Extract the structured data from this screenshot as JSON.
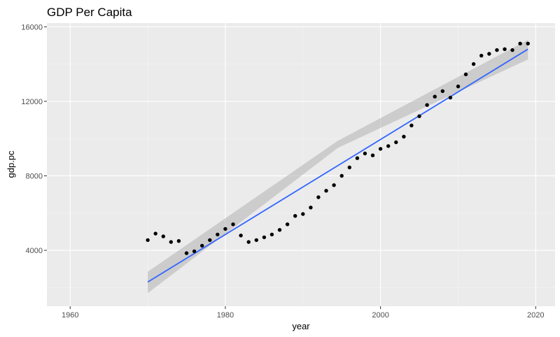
{
  "chart_data": {
    "type": "scatter",
    "title": "GDP Per Capita",
    "xlabel": "year",
    "ylabel": "gdp.pc",
    "xlim": [
      1957,
      2022.5
    ],
    "ylim": [
      1000,
      16200
    ],
    "x_ticks": [
      1960,
      1980,
      2000,
      2020
    ],
    "y_ticks": [
      4000,
      8000,
      12000,
      16000
    ],
    "grid": true,
    "legend": "none",
    "background_color": "#ebebeb",
    "point_color": "#000000",
    "fit_color": "#3366ff",
    "band_color": "#b3b3b3",
    "points": [
      {
        "x": 1970,
        "y": 4550
      },
      {
        "x": 1971,
        "y": 4900
      },
      {
        "x": 1972,
        "y": 4750
      },
      {
        "x": 1973,
        "y": 4450
      },
      {
        "x": 1974,
        "y": 4500
      },
      {
        "x": 1975,
        "y": 3850
      },
      {
        "x": 1976,
        "y": 3950
      },
      {
        "x": 1977,
        "y": 4250
      },
      {
        "x": 1978,
        "y": 4550
      },
      {
        "x": 1979,
        "y": 4850
      },
      {
        "x": 1980,
        "y": 5150
      },
      {
        "x": 1981,
        "y": 5400
      },
      {
        "x": 1982,
        "y": 4800
      },
      {
        "x": 1983,
        "y": 4450
      },
      {
        "x": 1984,
        "y": 4550
      },
      {
        "x": 1985,
        "y": 4700
      },
      {
        "x": 1986,
        "y": 4850
      },
      {
        "x": 1987,
        "y": 5100
      },
      {
        "x": 1988,
        "y": 5400
      },
      {
        "x": 1989,
        "y": 5850
      },
      {
        "x": 1990,
        "y": 5950
      },
      {
        "x": 1991,
        "y": 6300
      },
      {
        "x": 1992,
        "y": 6850
      },
      {
        "x": 1993,
        "y": 7200
      },
      {
        "x": 1994,
        "y": 7500
      },
      {
        "x": 1995,
        "y": 8000
      },
      {
        "x": 1996,
        "y": 8450
      },
      {
        "x": 1997,
        "y": 8950
      },
      {
        "x": 1998,
        "y": 9200
      },
      {
        "x": 1999,
        "y": 9100
      },
      {
        "x": 2000,
        "y": 9450
      },
      {
        "x": 2001,
        "y": 9600
      },
      {
        "x": 2002,
        "y": 9800
      },
      {
        "x": 2003,
        "y": 10100
      },
      {
        "x": 2004,
        "y": 10700
      },
      {
        "x": 2005,
        "y": 11200
      },
      {
        "x": 2006,
        "y": 11800
      },
      {
        "x": 2007,
        "y": 12250
      },
      {
        "x": 2008,
        "y": 12550
      },
      {
        "x": 2009,
        "y": 12200
      },
      {
        "x": 2010,
        "y": 12800
      },
      {
        "x": 2011,
        "y": 13450
      },
      {
        "x": 2012,
        "y": 14000
      },
      {
        "x": 2013,
        "y": 14450
      },
      {
        "x": 2014,
        "y": 14550
      },
      {
        "x": 2015,
        "y": 14750
      },
      {
        "x": 2016,
        "y": 14800
      },
      {
        "x": 2017,
        "y": 14750
      },
      {
        "x": 2018,
        "y": 15100
      },
      {
        "x": 2019,
        "y": 15100
      }
    ],
    "fit": {
      "method": "linear",
      "x_range": [
        1970,
        2019
      ],
      "y_start": 2300,
      "y_end": 14800,
      "ci_start": [
        1700,
        2850
      ],
      "ci_mid": [
        9500,
        9880
      ],
      "ci_end": [
        14250,
        15300
      ]
    }
  }
}
